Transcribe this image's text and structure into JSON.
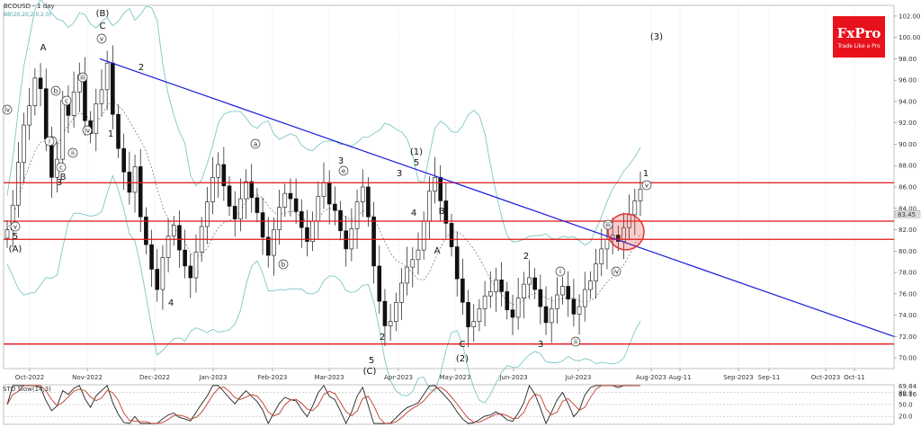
{
  "header": {
    "symbol_timeframe": "BCOUSD - 1 day",
    "indicator": "BB(20,20,2.0,2.0)"
  },
  "logo": {
    "brand": "FxPro",
    "tagline": "Trade Like a Pro"
  },
  "lower_panel": {
    "label": "STO Slow(14,3)",
    "levels": [
      "80.0",
      "50.0",
      "20.0"
    ],
    "values": [
      "69.84",
      "68.16"
    ]
  },
  "chart_data": {
    "type": "candlestick",
    "symbol": "BCOUSD",
    "timeframe": "1 day",
    "y_axis": {
      "ticks": [
        "102.00",
        "100.00",
        "98.00",
        "96.00",
        "94.00",
        "92.00",
        "90.00",
        "88.00",
        "86.00",
        "84.00",
        "82.00",
        "80.00",
        "78.00",
        "76.00",
        "74.00",
        "72.00",
        "70.00"
      ],
      "range": [
        69,
        103
      ],
      "current_price": "83.45"
    },
    "x_axis": {
      "ticks": [
        "Oct-2022",
        "Nov-2022",
        "Dec-2022",
        "Jan-2023",
        "Feb-2023",
        "Mar-2023",
        "Apr-2023",
        "May-2023",
        "Jun-2023",
        "Jul-2023",
        "Aug-2023",
        "Aug-11",
        "Sep-2023",
        "Sep-11",
        "Oct-2023",
        "Oct-11"
      ]
    },
    "horizontal_levels": [
      86.4,
      82.8,
      81.1,
      71.3
    ],
    "trendline": {
      "from": {
        "date": "Nov-2022",
        "price": 98.0
      },
      "to": {
        "date": "Oct-11",
        "price": 72.0
      }
    },
    "highlight_circle": {
      "date": "Jul-2023",
      "price": 81.8
    },
    "wave_labels": [
      "(B)",
      "C",
      "A",
      "2",
      "1",
      "B",
      "3",
      "4",
      "(A)",
      "5",
      "(1)",
      "5",
      "3",
      "4",
      "B",
      "A",
      "C",
      "(2)",
      "(C)",
      "5",
      "2",
      "3",
      "1",
      "2",
      "3",
      "(3)"
    ],
    "circled_labels": [
      "v",
      "iii",
      "iv",
      "b",
      "i",
      "ii",
      "a",
      "c",
      "iv",
      "v",
      "a",
      "b",
      "c",
      "e",
      "iii",
      "iv",
      "v",
      "i",
      "ii"
    ],
    "prices": [
      82.0,
      84.3,
      88.3,
      91.8,
      93.6,
      96.2,
      95.2,
      90.5,
      86.9,
      88.6,
      94.1,
      92.7,
      94.9,
      96.5,
      92.2,
      91.0,
      93.8,
      95.1,
      97.6,
      92.8,
      89.6,
      87.4,
      85.5,
      87.9,
      83.2,
      80.6,
      78.3,
      76.4,
      79.4,
      81.4,
      82.4,
      80.1,
      78.6,
      77.5,
      79.9,
      82.3,
      84.6,
      86.9,
      88.1,
      86.1,
      84.2,
      83.0,
      84.9,
      86.5,
      85.0,
      83.6,
      81.3,
      79.6,
      82.0,
      84.1,
      85.4,
      84.9,
      83.7,
      82.2,
      80.9,
      82.8,
      85.1,
      86.4,
      84.4,
      83.8,
      81.9,
      80.2,
      82.1,
      84.6,
      86.0,
      83.2,
      78.6,
      75.3,
      73.0,
      73.4,
      75.2,
      77.0,
      78.5,
      79.2,
      80.1,
      82.8,
      85.6,
      86.9,
      84.7,
      82.6,
      80.4,
      77.4,
      75.2,
      72.9,
      73.4,
      74.6,
      75.8,
      76.2,
      77.3,
      76.2,
      74.5,
      73.8,
      75.6,
      76.9,
      77.5,
      76.4,
      74.8,
      73.3,
      74.6,
      75.9,
      76.7,
      75.5,
      74.1,
      74.8,
      76.4,
      77.2,
      78.8,
      80.2,
      81.1,
      81.5,
      80.9,
      82.2,
      83.4,
      84.7,
      85.8
    ]
  }
}
